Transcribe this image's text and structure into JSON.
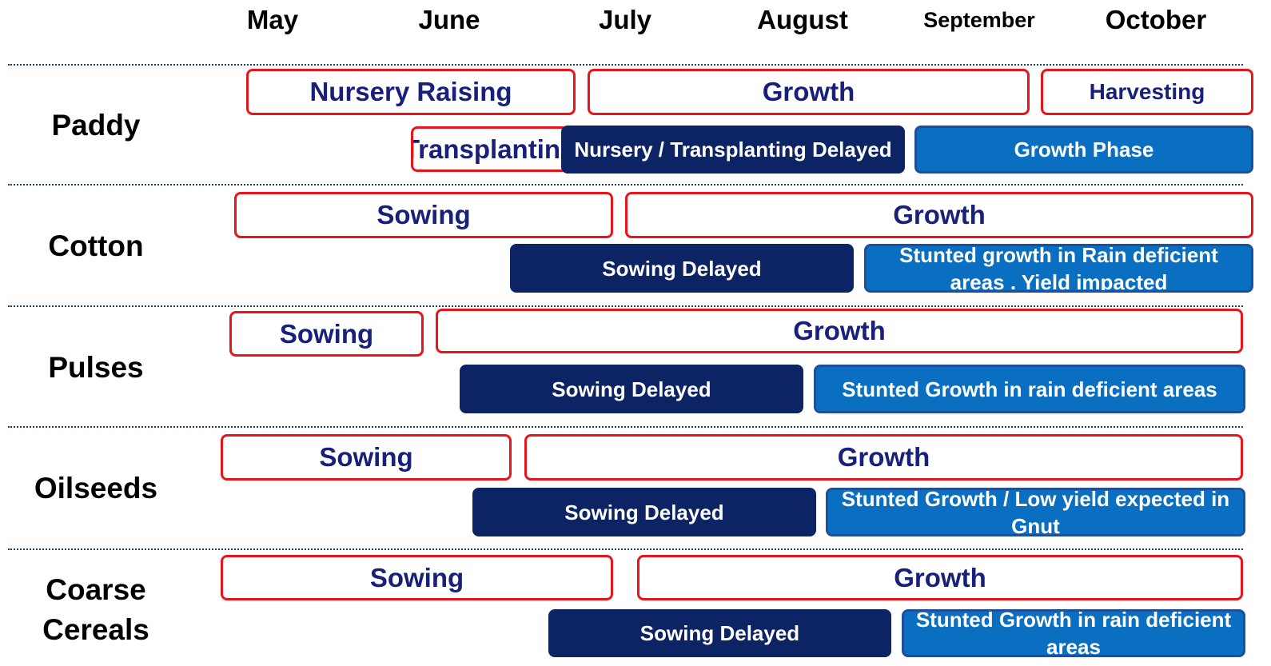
{
  "months": [
    "May",
    "June",
    "July",
    "August",
    "September",
    "October"
  ],
  "crops": [
    {
      "name": "Paddy",
      "planned": [
        "Nursery Raising",
        "Growth",
        "Harvesting",
        "Transplanting"
      ],
      "actual": [
        "Nursery / Transplanting Delayed",
        "Growth Phase"
      ]
    },
    {
      "name": "Cotton",
      "planned": [
        "Sowing",
        "Growth"
      ],
      "actual": [
        "Sowing Delayed",
        "Stunted growth in Rain deficient areas . Yield impacted"
      ]
    },
    {
      "name": "Pulses",
      "planned": [
        "Sowing",
        "Growth"
      ],
      "actual": [
        "Sowing Delayed",
        "Stunted Growth in rain deficient areas"
      ]
    },
    {
      "name": "Oilseeds",
      "planned": [
        "Sowing",
        "Growth"
      ],
      "actual": [
        "Sowing Delayed",
        "Stunted Growth / Low  yield expected in Gnut"
      ]
    },
    {
      "name": "Coarse Cereals",
      "planned": [
        "Sowing",
        "Growth"
      ],
      "actual": [
        "Sowing Delayed",
        "Stunted Growth in rain deficient areas"
      ]
    }
  ]
}
